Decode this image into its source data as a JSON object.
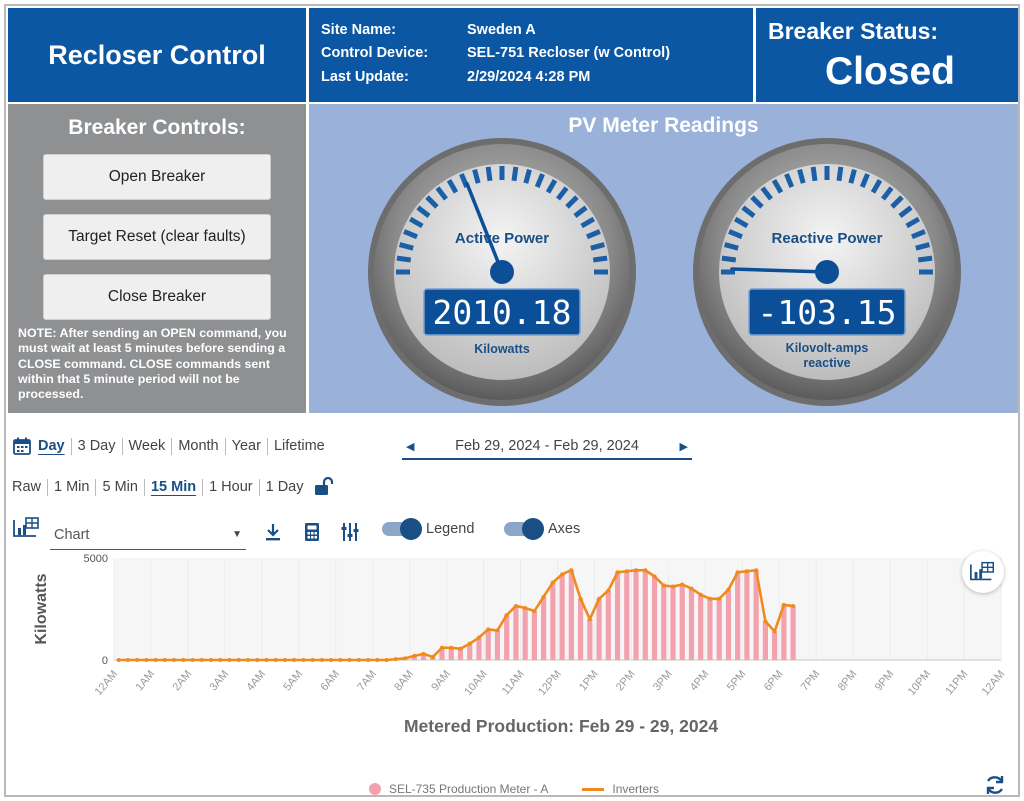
{
  "header": {
    "title": "Recloser Control",
    "info": [
      {
        "key": "Site Name:",
        "value": "Sweden A"
      },
      {
        "key": "Control Device:",
        "value": "SEL-751 Recloser (w Control)"
      },
      {
        "key": "Last Update:",
        "value": "2/29/2024 4:28 PM"
      }
    ],
    "status_label": "Breaker Status:",
    "status_value": "Closed"
  },
  "controls": {
    "title": "Breaker Controls:",
    "buttons": [
      "Open Breaker",
      "Target Reset (clear faults)",
      "Close Breaker"
    ],
    "note": "NOTE: After sending an OPEN command, you must wait at least 5 minutes before sending a CLOSE command.  CLOSE commands sent within that 5 minute period will not be processed."
  },
  "meters": {
    "title": "PV Meter Readings",
    "gauges": [
      {
        "label": "Active Power",
        "value": "2010.18",
        "unit": "Kilowatts",
        "needle_fraction": 0.38
      },
      {
        "label": "Reactive Power",
        "value": "-103.15",
        "unit_lines": [
          "Kilovolt-amps",
          "reactive"
        ],
        "needle_fraction": 0.01
      }
    ]
  },
  "toolbar": {
    "periods": [
      "Day",
      "3 Day",
      "Week",
      "Month",
      "Year",
      "Lifetime"
    ],
    "active_period": "Day",
    "date_range": "Feb 29, 2024 - Feb 29, 2024",
    "intervals": [
      "Raw",
      "1 Min",
      "5 Min",
      "15 Min",
      "1 Hour",
      "1 Day"
    ],
    "active_interval": "15 Min",
    "view_select": "Chart",
    "legend_toggle": "Legend",
    "axes_toggle": "Axes"
  },
  "colors": {
    "header_blue": "#0b57a4",
    "panel_gray": "#8f9092",
    "meter_bg": "#9ab2da",
    "bar_pink": "#f2a1ad",
    "line_orange": "#f08a1c",
    "link_blue": "#1a4f86"
  },
  "chart_data": {
    "type": "bar",
    "title": "Metered Production: Feb 29 - 29, 2024",
    "ylabel": "Kilowatts",
    "ylim": [
      0,
      5000
    ],
    "yticks": [
      0,
      5000
    ],
    "x_tick_labels": [
      "12AM",
      "1AM",
      "2AM",
      "3AM",
      "4AM",
      "5AM",
      "6AM",
      "7AM",
      "8AM",
      "9AM",
      "10AM",
      "11AM",
      "12PM",
      "1PM",
      "2PM",
      "3PM",
      "4PM",
      "5PM",
      "6PM",
      "7PM",
      "8PM",
      "9PM",
      "10PM",
      "11PM",
      "12AM"
    ],
    "interval_hours": 0.25,
    "legend_position": "bottom",
    "series": [
      {
        "name": "SEL-735 Production Meter - A",
        "type": "bar",
        "values": [
          0,
          0,
          0,
          0,
          0,
          0,
          0,
          0,
          0,
          0,
          0,
          0,
          0,
          0,
          0,
          0,
          0,
          0,
          0,
          0,
          0,
          0,
          0,
          0,
          0,
          0,
          0,
          0,
          0,
          0,
          40,
          80,
          200,
          300,
          150,
          600,
          600,
          550,
          800,
          1100,
          1500,
          1450,
          2200,
          2650,
          2550,
          2400,
          3100,
          3800,
          4200,
          4400,
          3000,
          2000,
          3000,
          3400,
          4300,
          4350,
          4400,
          4400,
          4100,
          3650,
          3600,
          3700,
          3500,
          3200,
          3000,
          3000,
          3450,
          4300,
          4350,
          4400,
          1900,
          1400,
          2700,
          2650
        ]
      },
      {
        "name": "Inverters",
        "type": "line",
        "values": [
          0,
          0,
          0,
          0,
          0,
          0,
          0,
          0,
          0,
          0,
          0,
          0,
          0,
          0,
          0,
          0,
          0,
          0,
          0,
          0,
          0,
          0,
          0,
          0,
          0,
          0,
          0,
          0,
          0,
          0,
          40,
          80,
          200,
          300,
          150,
          600,
          600,
          550,
          800,
          1100,
          1500,
          1450,
          2200,
          2650,
          2550,
          2400,
          3100,
          3800,
          4200,
          4400,
          3000,
          2000,
          3000,
          3400,
          4300,
          4350,
          4400,
          4400,
          4100,
          3650,
          3600,
          3700,
          3500,
          3200,
          3000,
          3000,
          3450,
          4300,
          4350,
          4400,
          1900,
          1400,
          2700,
          2650
        ]
      }
    ]
  }
}
